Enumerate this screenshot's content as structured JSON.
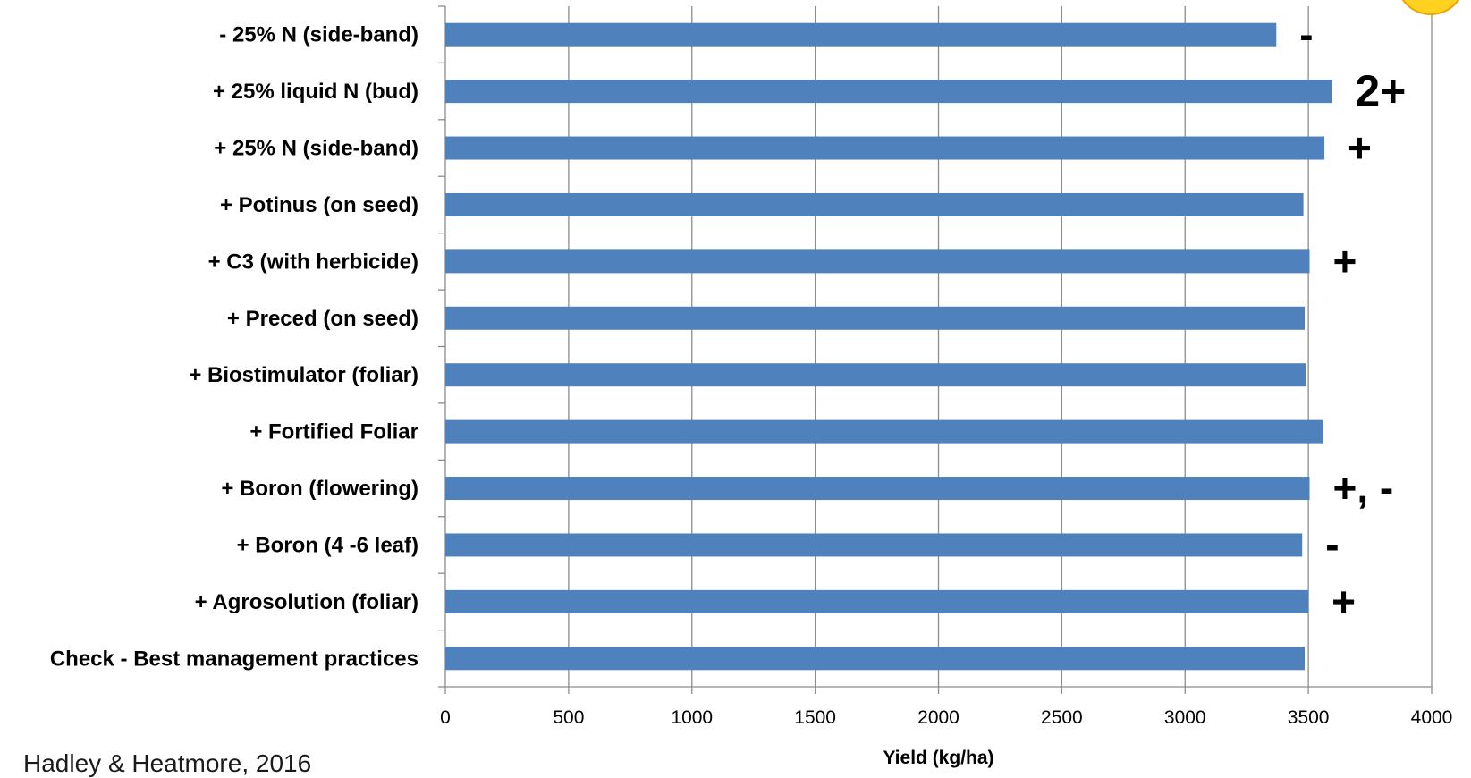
{
  "chart_data": {
    "type": "bar",
    "orientation": "horizontal",
    "categories": [
      "- 25% N (side-band)",
      "+ 25% liquid N (bud)",
      "+ 25% N (side-band)",
      "+ Potinus (on seed)",
      "+ C3 (with herbicide)",
      "+ Preced (on seed)",
      "+ Biostimulator (foliar)",
      "+ Fortified Foliar",
      "+ Boron (flowering)",
      "+ Boron (4 -6 leaf)",
      "+ Agrosolution (foliar)",
      "Check - Best management practices"
    ],
    "values": [
      3370,
      3595,
      3565,
      3480,
      3505,
      3485,
      3490,
      3560,
      3505,
      3475,
      3500,
      3485
    ],
    "annotations": [
      "-",
      "2+",
      "+",
      "",
      "+",
      "",
      "",
      "",
      "+, -",
      "-",
      "+",
      ""
    ],
    "xlabel": "Yield (kg/ha)",
    "xlim": [
      0,
      4000
    ],
    "xticks": [
      0,
      500,
      1000,
      1500,
      2000,
      2500,
      3000,
      3500,
      4000
    ],
    "grid": "vertical",
    "bar_color": "#4f81bd"
  },
  "citation": "Hadley & Heatmore, 2016"
}
